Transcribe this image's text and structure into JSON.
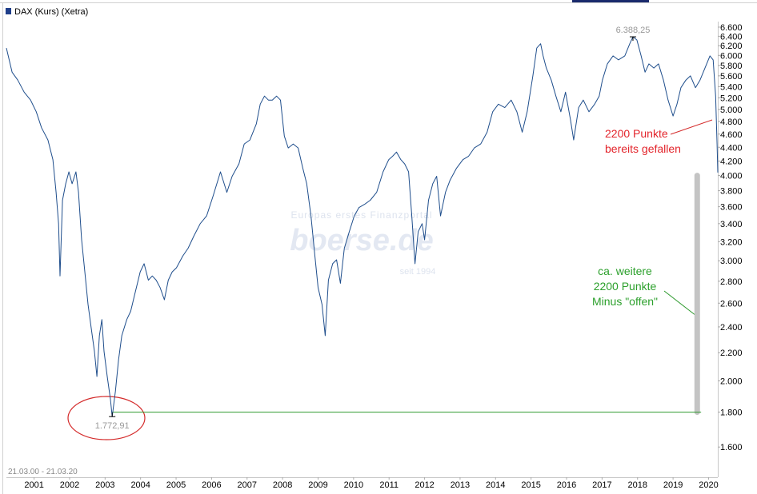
{
  "chart_data": {
    "type": "line",
    "legend": "DAX (Kurs) (Xetra)",
    "date_range": "21.03.00 - 21.03.20",
    "watermark": [
      "Europas erstes Finanzportal",
      "boerse.de",
      "seit 1994"
    ],
    "log_y": true,
    "grid": false,
    "xlim": [
      2000.22,
      2020.26
    ],
    "xticks": [
      2001,
      2002,
      2003,
      2004,
      2005,
      2006,
      2007,
      2008,
      2009,
      2010,
      2011,
      2012,
      2013,
      2014,
      2015,
      2016,
      2017,
      2018,
      2019,
      2020
    ],
    "ylim": [
      1445,
      6725
    ],
    "yticks": [
      {
        "value": 1600,
        "label": "1.600"
      },
      {
        "value": 1800,
        "label": "1.800"
      },
      {
        "value": 2000,
        "label": "2.000"
      },
      {
        "value": 2200,
        "label": "2.200"
      },
      {
        "value": 2400,
        "label": "2.400"
      },
      {
        "value": 2600,
        "label": "2.600"
      },
      {
        "value": 2800,
        "label": "2.800"
      },
      {
        "value": 3000,
        "label": "3.000"
      },
      {
        "value": 3200,
        "label": "3.200"
      },
      {
        "value": 3400,
        "label": "3.400"
      },
      {
        "value": 3600,
        "label": "3.600"
      },
      {
        "value": 3800,
        "label": "3.800"
      },
      {
        "value": 4000,
        "label": "4.000"
      },
      {
        "value": 4200,
        "label": "4.200"
      },
      {
        "value": 4400,
        "label": "4.400"
      },
      {
        "value": 4600,
        "label": "4.600"
      },
      {
        "value": 4800,
        "label": "4.800"
      },
      {
        "value": 5000,
        "label": "5.000"
      },
      {
        "value": 5200,
        "label": "5.200"
      },
      {
        "value": 5400,
        "label": "5.400"
      },
      {
        "value": 5600,
        "label": "5.600"
      },
      {
        "value": 5800,
        "label": "5.800"
      },
      {
        "value": 6000,
        "label": "6.000"
      },
      {
        "value": 6200,
        "label": "6.200"
      },
      {
        "value": 6400,
        "label": "6.400"
      },
      {
        "value": 6600,
        "label": "6.600"
      }
    ],
    "x": [
      2000.22,
      2000.38,
      2000.54,
      2000.72,
      2000.9,
      2001.06,
      2001.21,
      2001.39,
      2001.53,
      2001.62,
      2001.69,
      2001.73,
      2001.8,
      2001.89,
      2001.98,
      2002.07,
      2002.18,
      2002.25,
      2002.34,
      2002.43,
      2002.52,
      2002.61,
      2002.7,
      2002.77,
      2002.84,
      2002.91,
      2002.97,
      2003.06,
      2003.15,
      2003.2,
      2003.29,
      2003.38,
      2003.47,
      2003.61,
      2003.72,
      2003.83,
      2003.99,
      2004.1,
      2004.22,
      2004.33,
      2004.44,
      2004.55,
      2004.67,
      2004.78,
      2004.89,
      2005.01,
      2005.19,
      2005.34,
      2005.5,
      2005.68,
      2005.86,
      2006.04,
      2006.25,
      2006.43,
      2006.58,
      2006.77,
      2006.92,
      2007.08,
      2007.26,
      2007.37,
      2007.49,
      2007.6,
      2007.71,
      2007.83,
      2007.94,
      2008.05,
      2008.16,
      2008.3,
      2008.44,
      2008.57,
      2008.68,
      2008.8,
      2008.91,
      2009.0,
      2009.11,
      2009.2,
      2009.29,
      2009.41,
      2009.52,
      2009.63,
      2009.74,
      2009.88,
      2010.02,
      2010.15,
      2010.31,
      2010.47,
      2010.65,
      2010.83,
      2010.99,
      2011.1,
      2011.21,
      2011.33,
      2011.44,
      2011.55,
      2011.64,
      2011.73,
      2011.82,
      2011.93,
      2012.0,
      2012.11,
      2012.23,
      2012.34,
      2012.45,
      2012.59,
      2012.72,
      2012.9,
      2013.08,
      2013.24,
      2013.4,
      2013.58,
      2013.76,
      2013.92,
      2014.08,
      2014.26,
      2014.44,
      2014.6,
      2014.75,
      2014.89,
      2015.05,
      2015.16,
      2015.27,
      2015.34,
      2015.43,
      2015.57,
      2015.7,
      2015.84,
      2015.97,
      2016.11,
      2016.2,
      2016.34,
      2016.47,
      2016.63,
      2016.79,
      2016.92,
      2017.01,
      2017.15,
      2017.31,
      2017.46,
      2017.64,
      2017.78,
      2017.87,
      2017.98,
      2018.1,
      2018.21,
      2018.32,
      2018.46,
      2018.59,
      2018.73,
      2018.86,
      2019.0,
      2019.11,
      2019.22,
      2019.36,
      2019.49,
      2019.63,
      2019.76,
      2019.9,
      2020.04,
      2020.13,
      2020.2,
      2020.24,
      2020.26
    ],
    "series": [
      {
        "name": "DAX (Kurs) (Xetra)",
        "color": "#1f4e8c",
        "values": [
          6150,
          5670,
          5520,
          5300,
          5160,
          4960,
          4700,
          4510,
          4220,
          3780,
          3400,
          2850,
          3680,
          3890,
          4050,
          3890,
          4050,
          3780,
          3220,
          2890,
          2590,
          2390,
          2210,
          2030,
          2330,
          2460,
          2210,
          2030,
          1880,
          1772.91,
          1930,
          2150,
          2330,
          2460,
          2530,
          2670,
          2890,
          2970,
          2810,
          2850,
          2810,
          2740,
          2630,
          2810,
          2890,
          2930,
          3050,
          3130,
          3260,
          3400,
          3490,
          3730,
          4050,
          3780,
          3990,
          4160,
          4450,
          4510,
          4760,
          5090,
          5230,
          5160,
          5160,
          5230,
          5160,
          4570,
          4390,
          4450,
          4390,
          4100,
          3890,
          3490,
          3050,
          2740,
          2590,
          2330,
          2810,
          2970,
          3010,
          2780,
          3130,
          3310,
          3490,
          3590,
          3630,
          3680,
          3780,
          4050,
          4220,
          4270,
          4330,
          4220,
          4160,
          4050,
          3490,
          2970,
          3310,
          3400,
          3220,
          3680,
          3890,
          3990,
          3490,
          3780,
          3940,
          4100,
          4220,
          4270,
          4390,
          4450,
          4630,
          4960,
          5090,
          5030,
          5160,
          4960,
          4630,
          4960,
          5600,
          6150,
          6240,
          5990,
          5750,
          5520,
          5230,
          4960,
          5300,
          4830,
          4510,
          5030,
          5160,
          4960,
          5090,
          5230,
          5520,
          5830,
          5990,
          5910,
          5990,
          6240,
          6388.25,
          6320,
          5990,
          5670,
          5830,
          5750,
          5830,
          5520,
          5160,
          4890,
          5090,
          5380,
          5520,
          5600,
          5380,
          5520,
          5750,
          5990,
          5910,
          5230,
          4450,
          4040
        ]
      }
    ],
    "annotations": [
      {
        "text": "6.388,25",
        "x": 2017.87,
        "y": 6388.25
      },
      {
        "text": "1.772,91",
        "x": 2003.2,
        "y": 1772.91
      }
    ],
    "reference_line": {
      "value": 1800,
      "x": [
        2003.2,
        2019.79
      ],
      "color": "#2e9a2e"
    },
    "range_bar": {
      "x": 2019.68,
      "values": [
        1800,
        4000
      ],
      "color": "#c4c4c4"
    },
    "note_fallen": {
      "lines": [
        "2200 Punkte",
        "bereits gefallen"
      ],
      "color": "#e3242b"
    },
    "note_open": {
      "lines": [
        "ca. weitere",
        "2200 Punkte",
        "Minus \"offen\""
      ],
      "color": "#2ca02c"
    }
  }
}
